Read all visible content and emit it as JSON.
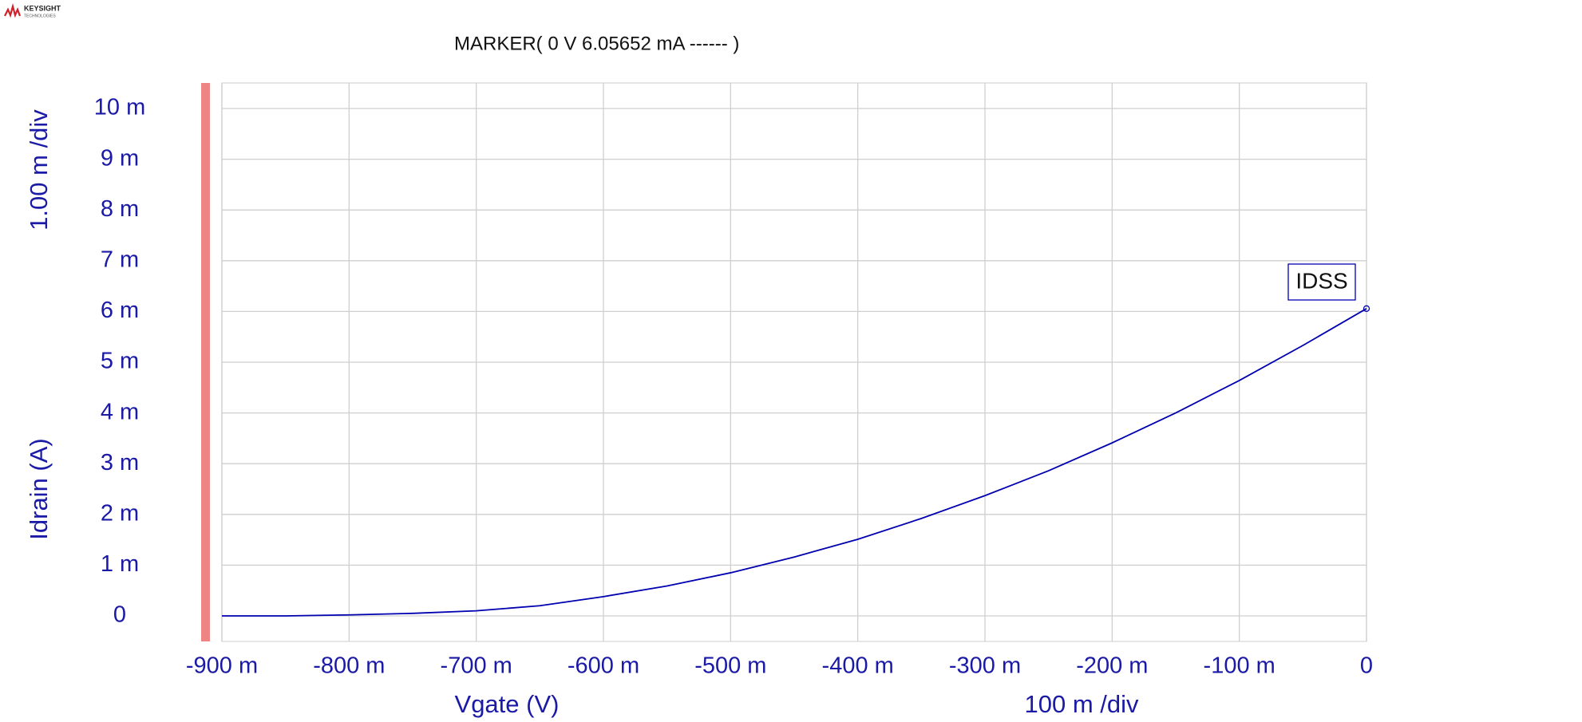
{
  "header": {
    "brand": "KEYSIGHT",
    "brand_sub": "TECHNOLOGIES"
  },
  "chart_data": {
    "type": "line",
    "marker_readout": "MARKER(  0 V   6.05652 mA  ------ )",
    "x_label": "Vgate (V)",
    "y_label": "Idrain (A)",
    "x_scale_label": "100 m /div",
    "y_scale_label": "1.00 m /div",
    "annotation": "IDSS",
    "xlim": [
      -0.9,
      0
    ],
    "ylim": [
      0,
      0.01
    ],
    "xticks": [
      {
        "value": -0.9,
        "label": "-900 m"
      },
      {
        "value": -0.8,
        "label": "-800 m"
      },
      {
        "value": -0.7,
        "label": "-700 m"
      },
      {
        "value": -0.6,
        "label": "-600 m"
      },
      {
        "value": -0.5,
        "label": "-500 m"
      },
      {
        "value": -0.4,
        "label": "-400 m"
      },
      {
        "value": -0.3,
        "label": "-300 m"
      },
      {
        "value": -0.2,
        "label": "-200 m"
      },
      {
        "value": -0.1,
        "label": "-100 m"
      },
      0
    ],
    "yticks": [
      0,
      {
        "value": 0.001,
        "label": "1 m"
      },
      {
        "value": 0.002,
        "label": "2 m"
      },
      {
        "value": 0.003,
        "label": "3 m"
      },
      {
        "value": 0.004,
        "label": "4 m"
      },
      {
        "value": 0.005,
        "label": "5 m"
      },
      {
        "value": 0.006,
        "label": "6 m"
      },
      {
        "value": 0.007,
        "label": "7 m"
      },
      {
        "value": 0.008,
        "label": "8 m"
      },
      {
        "value": 0.009,
        "label": "9 m"
      },
      {
        "value": 0.01,
        "label": "10 m"
      }
    ],
    "grid": true,
    "x": [
      -0.9,
      -0.85,
      -0.8,
      -0.75,
      -0.7,
      -0.65,
      -0.6,
      -0.55,
      -0.5,
      -0.45,
      -0.4,
      -0.35,
      -0.3,
      -0.25,
      -0.2,
      -0.15,
      -0.1,
      -0.05,
      0
    ],
    "series": [
      {
        "name": "IDSS",
        "color": "#0000b0",
        "values": [
          0,
          0,
          2e-05,
          5e-05,
          0.0001,
          0.0002,
          0.00038,
          0.00059,
          0.00085,
          0.00116,
          0.00151,
          0.00192,
          0.00237,
          0.00286,
          0.00341,
          0.004,
          0.00464,
          0.00533,
          0.00605652
        ]
      }
    ]
  }
}
